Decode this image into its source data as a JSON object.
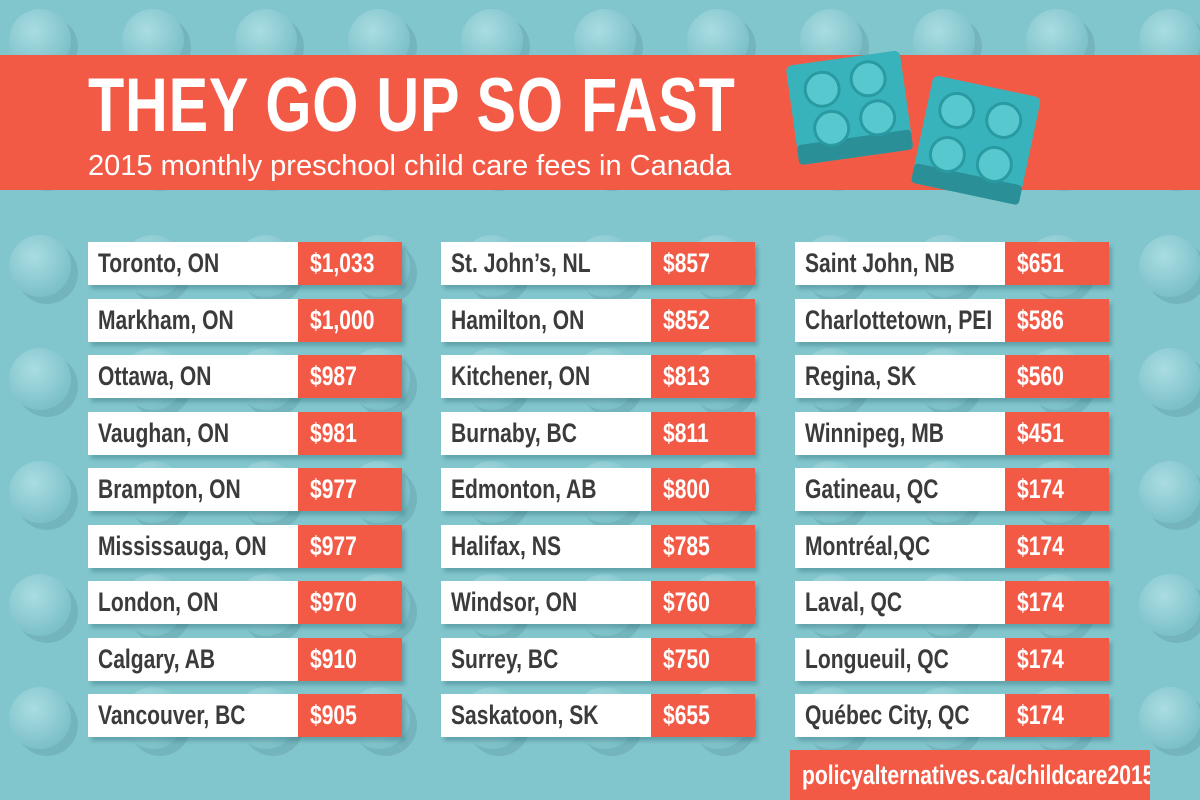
{
  "header": {
    "title": "THEY GO UP SO FAST",
    "subtitle": "2015 monthly preschool child care fees in Canada"
  },
  "table": {
    "columns": [
      {
        "rows": [
          {
            "city": "Toronto, ON",
            "fee": "$1,033"
          },
          {
            "city": "Markham, ON",
            "fee": "$1,000"
          },
          {
            "city": "Ottawa, ON",
            "fee": "$987"
          },
          {
            "city": "Vaughan, ON",
            "fee": "$981"
          },
          {
            "city": "Brampton, ON",
            "fee": "$977"
          },
          {
            "city": "Mississauga, ON",
            "fee": "$977"
          },
          {
            "city": "London, ON",
            "fee": "$970"
          },
          {
            "city": "Calgary, AB",
            "fee": "$910"
          },
          {
            "city": "Vancouver, BC",
            "fee": "$905"
          }
        ]
      },
      {
        "rows": [
          {
            "city": "St. John’s, NL",
            "fee": "$857"
          },
          {
            "city": "Hamilton, ON",
            "fee": "$852"
          },
          {
            "city": "Kitchener, ON",
            "fee": "$813"
          },
          {
            "city": "Burnaby, BC",
            "fee": "$811"
          },
          {
            "city": "Edmonton, AB",
            "fee": "$800"
          },
          {
            "city": "Halifax, NS",
            "fee": "$785"
          },
          {
            "city": "Windsor, ON",
            "fee": "$760"
          },
          {
            "city": "Surrey, BC",
            "fee": "$750"
          },
          {
            "city": "Saskatoon, SK",
            "fee": "$655"
          }
        ]
      },
      {
        "rows": [
          {
            "city": "Saint John, NB",
            "fee": "$651"
          },
          {
            "city": "Charlottetown, PEI",
            "fee": "$586"
          },
          {
            "city": "Regina, SK",
            "fee": "$560"
          },
          {
            "city": "Winnipeg, MB",
            "fee": "$451"
          },
          {
            "city": "Gatineau, QC",
            "fee": "$174"
          },
          {
            "city": "Montréal,QC",
            "fee": "$174"
          },
          {
            "city": "Laval, QC",
            "fee": "$174"
          },
          {
            "city": "Longueuil, QC",
            "fee": "$174"
          },
          {
            "city": "Québec City, QC",
            "fee": "$174"
          }
        ]
      }
    ]
  },
  "footer": {
    "url": "policyalternatives.ca/childcare2015"
  }
}
